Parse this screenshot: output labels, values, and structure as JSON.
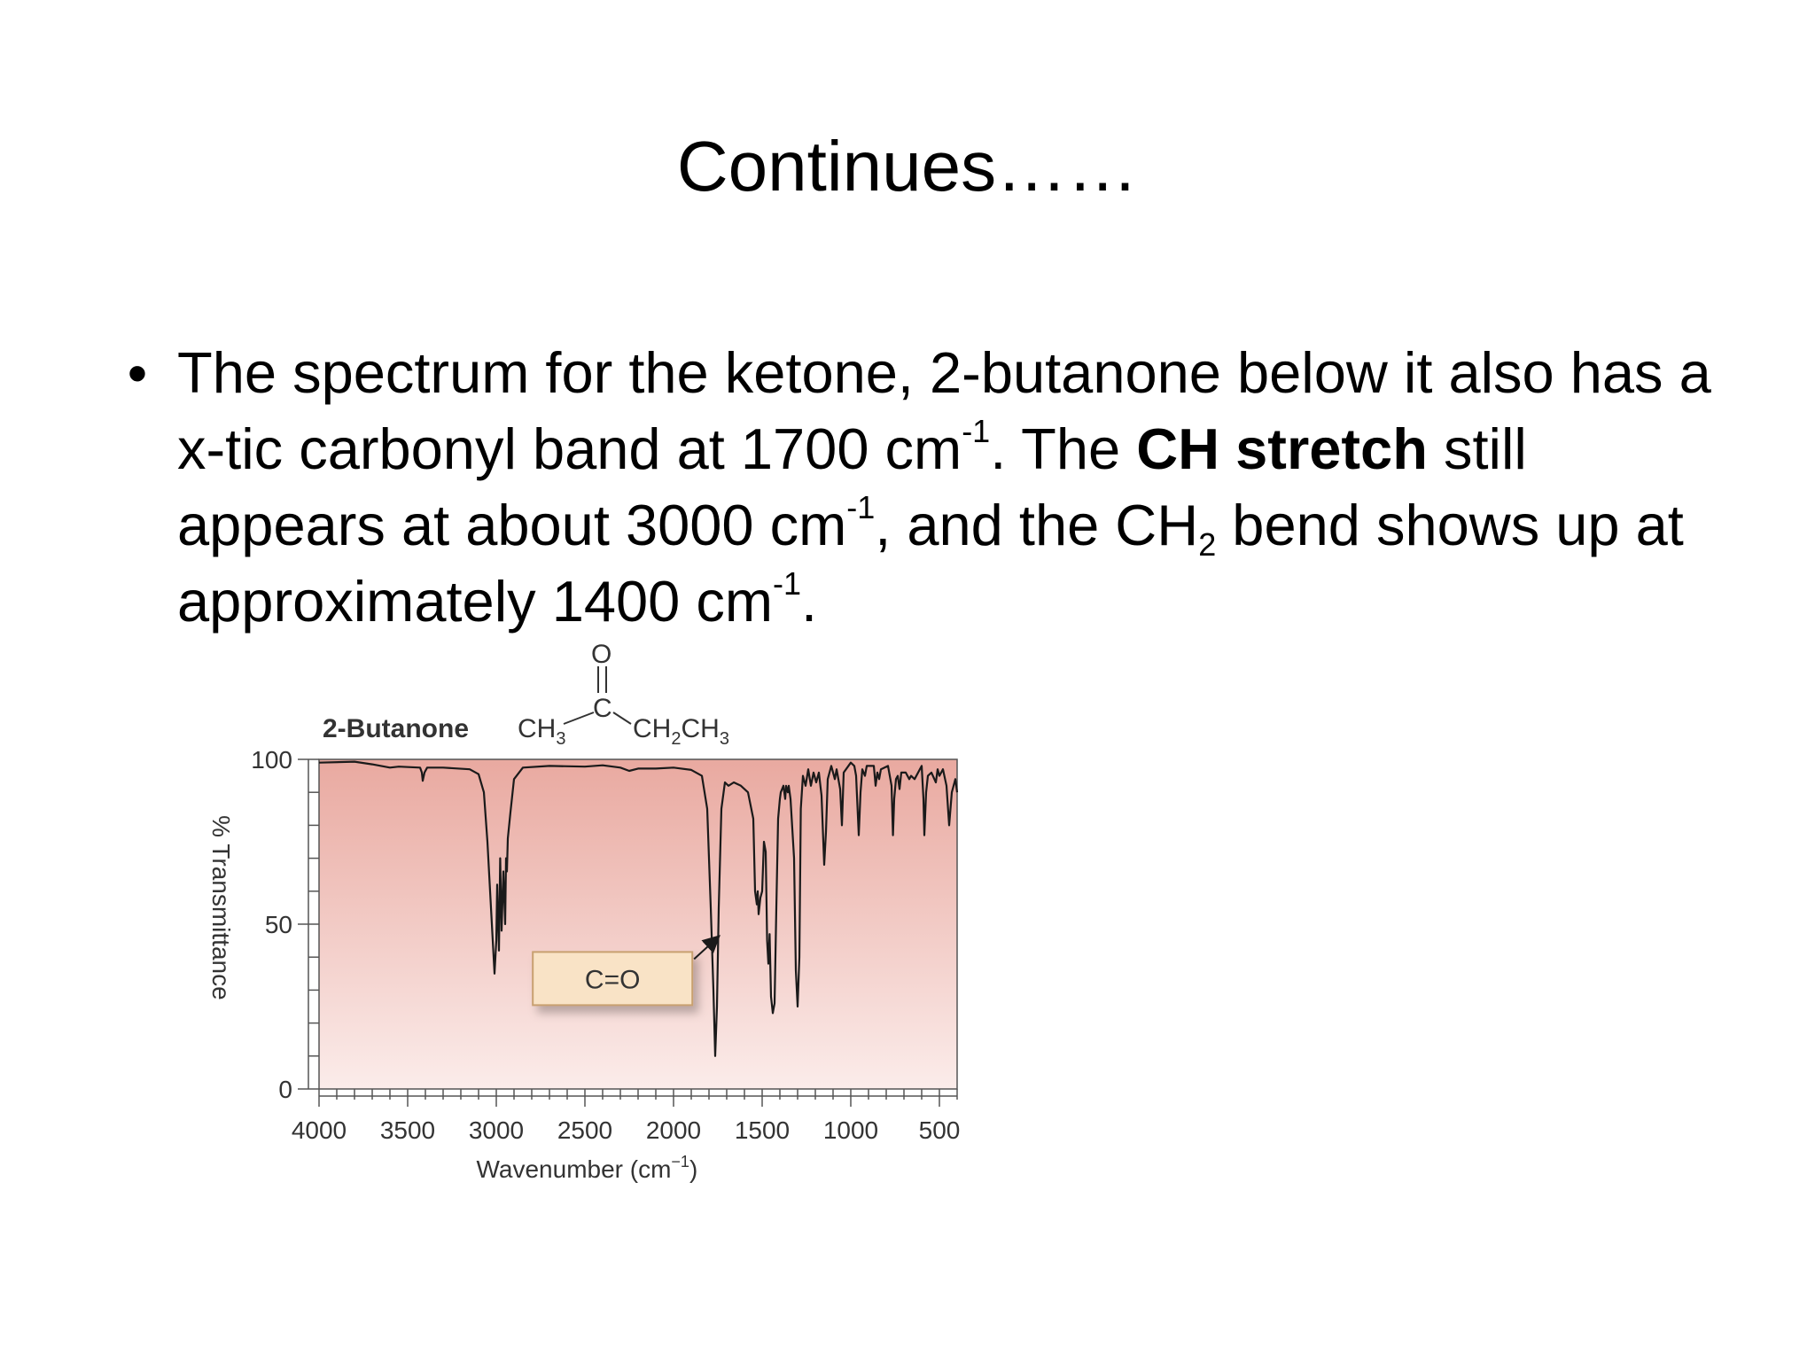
{
  "slide": {
    "title": "Continues……",
    "bullet": {
      "p1": "The spectrum for the ketone, 2-butanone below it also has a x-tic carbonyl band at 1700 cm",
      "sup1": "-1",
      "p2": ". The ",
      "bold": "CH stretch",
      "p3": " still appears at about 3000 cm",
      "sup2": "-1",
      "p4": ", and the CH",
      "sub1": "2",
      "p5": " bend shows up at approximately 1400 cm",
      "sup3": "-1",
      "p6": "."
    }
  },
  "chart_data": {
    "type": "line",
    "title": "2-Butanone",
    "molecule": {
      "left": "CH",
      "left_sub": "3",
      "center": "C",
      "oxygen": "O",
      "right": "CH",
      "right_sub1": "2",
      "right_mid": "CH",
      "right_sub2": "3"
    },
    "xlabel": "Wavenumber (cm",
    "xlabel_sup": "−1",
    "xlabel_end": ")",
    "ylabel": "% Transmittance",
    "xlim": [
      4000,
      400
    ],
    "ylim": [
      0,
      100
    ],
    "x_ticks": [
      "4000",
      "3500",
      "3000",
      "2500",
      "2000",
      "1500",
      "1000",
      "500"
    ],
    "x_tick_values": [
      4000,
      3500,
      3000,
      2500,
      2000,
      1500,
      1000,
      500
    ],
    "y_ticks": [
      "100",
      "50",
      "0"
    ],
    "y_tick_values": [
      100,
      50,
      0
    ],
    "annotation": {
      "label": "C=O",
      "x": 1720,
      "y": 46
    },
    "colors": {
      "plot_top": "#e9a9a0",
      "plot_bottom": "#fbecea",
      "line": "#1a1a1a",
      "axis": "#555555",
      "annotation_box": "#f9e3c6",
      "annotation_border": "#c8a070"
    },
    "series": [
      {
        "points": [
          [
            4000,
            99
          ],
          [
            3800,
            99.3
          ],
          [
            3700,
            98.5
          ],
          [
            3600,
            97.5
          ],
          [
            3550,
            97.8
          ],
          [
            3430,
            97.5
          ],
          [
            3420,
            96
          ],
          [
            3415,
            93.5
          ],
          [
            3405,
            96
          ],
          [
            3390,
            97.5
          ],
          [
            3300,
            97.5
          ],
          [
            3150,
            97
          ],
          [
            3100,
            95.5
          ],
          [
            3070,
            90
          ],
          [
            3050,
            75
          ],
          [
            3030,
            55
          ],
          [
            3015,
            40
          ],
          [
            3010,
            35
          ],
          [
            3000,
            45
          ],
          [
            2995,
            62
          ],
          [
            2985,
            42
          ],
          [
            2978,
            70
          ],
          [
            2970,
            48
          ],
          [
            2960,
            66
          ],
          [
            2950,
            50
          ],
          [
            2945,
            70
          ],
          [
            2940,
            66
          ],
          [
            2935,
            76
          ],
          [
            2920,
            84
          ],
          [
            2900,
            94
          ],
          [
            2850,
            97.5
          ],
          [
            2700,
            98
          ],
          [
            2500,
            97.8
          ],
          [
            2400,
            98.2
          ],
          [
            2300,
            97.5
          ],
          [
            2250,
            96.5
          ],
          [
            2200,
            97.2
          ],
          [
            2100,
            97.2
          ],
          [
            2000,
            97.5
          ],
          [
            1900,
            96.8
          ],
          [
            1840,
            95
          ],
          [
            1810,
            85
          ],
          [
            1790,
            55
          ],
          [
            1775,
            30
          ],
          [
            1765,
            10
          ],
          [
            1755,
            25
          ],
          [
            1745,
            55
          ],
          [
            1730,
            85
          ],
          [
            1710,
            93
          ],
          [
            1690,
            92
          ],
          [
            1660,
            93
          ],
          [
            1620,
            92
          ],
          [
            1580,
            90
          ],
          [
            1550,
            82
          ],
          [
            1540,
            60
          ],
          [
            1530,
            56
          ],
          [
            1525,
            60
          ],
          [
            1520,
            53
          ],
          [
            1510,
            58
          ],
          [
            1500,
            60
          ],
          [
            1490,
            75
          ],
          [
            1480,
            72
          ],
          [
            1472,
            45
          ],
          [
            1465,
            38
          ],
          [
            1458,
            47
          ],
          [
            1450,
            28
          ],
          [
            1440,
            23
          ],
          [
            1430,
            26
          ],
          [
            1420,
            55
          ],
          [
            1410,
            82
          ],
          [
            1400,
            88
          ],
          [
            1395,
            90
          ],
          [
            1380,
            92
          ],
          [
            1370,
            88
          ],
          [
            1365,
            92
          ],
          [
            1355,
            90
          ],
          [
            1350,
            92
          ],
          [
            1340,
            88
          ],
          [
            1320,
            70
          ],
          [
            1310,
            36
          ],
          [
            1300,
            25
          ],
          [
            1290,
            40
          ],
          [
            1282,
            85
          ],
          [
            1270,
            95
          ],
          [
            1255,
            92
          ],
          [
            1240,
            97
          ],
          [
            1225,
            92
          ],
          [
            1210,
            96
          ],
          [
            1195,
            93
          ],
          [
            1180,
            96
          ],
          [
            1165,
            89
          ],
          [
            1150,
            68
          ],
          [
            1140,
            78
          ],
          [
            1130,
            94
          ],
          [
            1110,
            98
          ],
          [
            1090,
            94
          ],
          [
            1080,
            97
          ],
          [
            1060,
            91
          ],
          [
            1050,
            80
          ],
          [
            1040,
            96
          ],
          [
            1000,
            99
          ],
          [
            980,
            98
          ],
          [
            970,
            95
          ],
          [
            955,
            77
          ],
          [
            945,
            90
          ],
          [
            935,
            97
          ],
          [
            920,
            95
          ],
          [
            910,
            98
          ],
          [
            870,
            98
          ],
          [
            860,
            92
          ],
          [
            850,
            96
          ],
          [
            840,
            94
          ],
          [
            830,
            97
          ],
          [
            790,
            98
          ],
          [
            770,
            92
          ],
          [
            762,
            77
          ],
          [
            755,
            88
          ],
          [
            745,
            94
          ],
          [
            735,
            95
          ],
          [
            725,
            91
          ],
          [
            715,
            96
          ],
          [
            690,
            96
          ],
          [
            670,
            94
          ],
          [
            660,
            95
          ],
          [
            640,
            94
          ],
          [
            600,
            98
          ],
          [
            590,
            88
          ],
          [
            585,
            77
          ],
          [
            575,
            90
          ],
          [
            565,
            95
          ],
          [
            545,
            96
          ],
          [
            520,
            93
          ],
          [
            510,
            97
          ],
          [
            500,
            95
          ],
          [
            480,
            97
          ],
          [
            460,
            92
          ],
          [
            445,
            80
          ],
          [
            430,
            90
          ],
          [
            420,
            92
          ],
          [
            410,
            94
          ],
          [
            400,
            90
          ]
        ]
      }
    ]
  }
}
